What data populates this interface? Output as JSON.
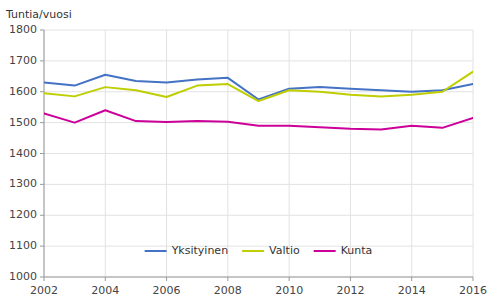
{
  "chart_data": {
    "type": "line",
    "ylabel": "Tuntia/vuosi",
    "x": [
      2002,
      2003,
      2004,
      2005,
      2006,
      2007,
      2008,
      2009,
      2010,
      2011,
      2012,
      2013,
      2014,
      2015,
      2016
    ],
    "xlim": [
      2002,
      2016
    ],
    "xticks": [
      2002,
      2004,
      2006,
      2008,
      2010,
      2012,
      2014,
      2016
    ],
    "ylim": [
      1000,
      1800
    ],
    "yticks": [
      1000,
      1100,
      1200,
      1300,
      1400,
      1500,
      1600,
      1700,
      1800
    ],
    "grid": true,
    "legend": "bottom",
    "series": [
      {
        "name": "Yksityinen",
        "color": "#4472C4",
        "values": [
          1630,
          1620,
          1655,
          1635,
          1630,
          1640,
          1645,
          1575,
          1610,
          1615,
          1610,
          1605,
          1600,
          1605,
          1625
        ]
      },
      {
        "name": "Valtio",
        "color": "#BFCE00",
        "values": [
          1595,
          1585,
          1615,
          1605,
          1583,
          1620,
          1625,
          1570,
          1605,
          1600,
          1590,
          1585,
          1590,
          1600,
          1665
        ]
      },
      {
        "name": "Kunta",
        "color": "#CC0099",
        "values": [
          1530,
          1500,
          1540,
          1505,
          1502,
          1505,
          1503,
          1490,
          1490,
          1485,
          1480,
          1478,
          1490,
          1483,
          1515
        ]
      }
    ]
  }
}
